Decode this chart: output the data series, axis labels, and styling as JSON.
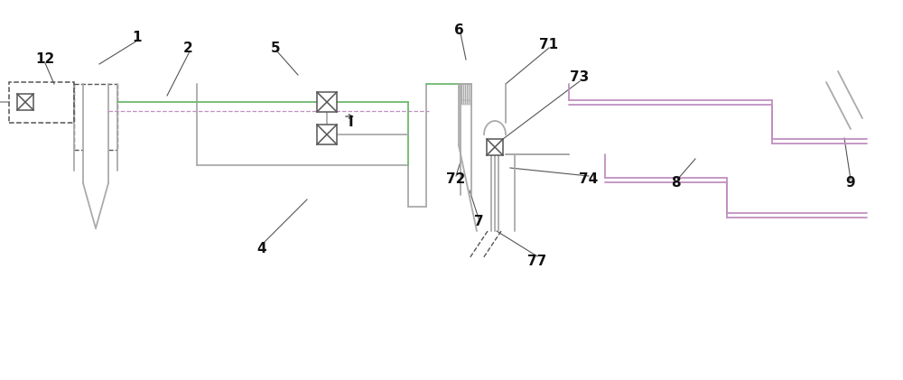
{
  "bg": "#ffffff",
  "gc": "#aaaaaa",
  "gr": "#70b870",
  "pu": "#c090c0",
  "dk": "#555555",
  "lc": "#111111",
  "fig_w": 10.0,
  "fig_h": 4.21,
  "dpi": 100
}
